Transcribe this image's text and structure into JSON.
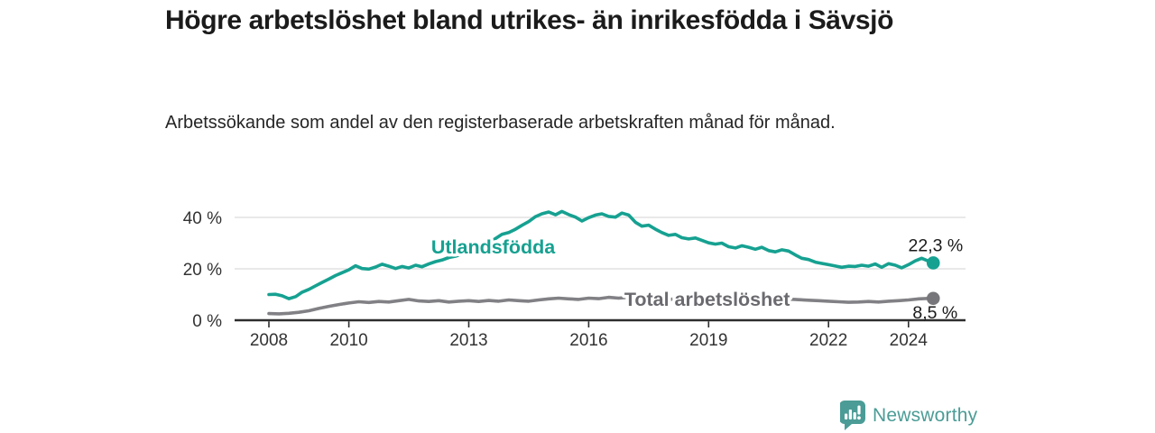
{
  "header": {
    "title": "Högre arbetslöshet bland utrikes- än inrikesfödda i Sävsjö",
    "subtitle": "Arbetssökande som andel av den registerbaserade arbetskraften månad för månad."
  },
  "footer": {
    "brand": "Newsworthy",
    "logo_icon": "bar-chart-speech-bubble-icon",
    "brand_color": "#4b9c96"
  },
  "colors": {
    "title_text": "#1b1b1b",
    "subtitle_text": "#252525",
    "axis_line": "#2d2d2d",
    "axis_text": "#333333",
    "gridline": "#dcdcdc",
    "teal": "#16a191",
    "gray_line": "#818185",
    "gray_label": "#6a6a6f",
    "gray_dot": "#77777b",
    "value_text": "#1a1a1a"
  },
  "chart_data": {
    "type": "line",
    "title": "",
    "xlabel": "",
    "ylabel": "",
    "grid": "horizontal",
    "legend_position": "inline-labels",
    "xlim": [
      2007.1,
      2025.4
    ],
    "ylim": [
      0,
      45
    ],
    "x_ticks": [
      2008,
      2010,
      2013,
      2016,
      2019,
      2022,
      2024
    ],
    "y_ticks": [
      {
        "value": 0,
        "label": "0 %"
      },
      {
        "value": 20,
        "label": "20 %"
      },
      {
        "value": 40,
        "label": "40 %"
      }
    ],
    "series": [
      {
        "name": "Utlandsfödda",
        "color": "#16a191",
        "label_color": "#16a191",
        "dot_color": "#16a191",
        "end_label": "22,3 %",
        "end_value": 22.3,
        "label_anchor": {
          "year": 2012.06,
          "pct": 26.0
        },
        "points": [
          [
            2008.0,
            10.0
          ],
          [
            2008.17,
            10.1
          ],
          [
            2008.33,
            9.5
          ],
          [
            2008.5,
            8.4
          ],
          [
            2008.67,
            9.2
          ],
          [
            2008.83,
            10.9
          ],
          [
            2009.0,
            12.0
          ],
          [
            2009.17,
            13.4
          ],
          [
            2009.33,
            14.7
          ],
          [
            2009.5,
            16.0
          ],
          [
            2009.67,
            17.4
          ],
          [
            2009.83,
            18.5
          ],
          [
            2010.0,
            19.6
          ],
          [
            2010.17,
            21.2
          ],
          [
            2010.33,
            20.1
          ],
          [
            2010.5,
            19.9
          ],
          [
            2010.67,
            20.7
          ],
          [
            2010.83,
            21.8
          ],
          [
            2011.0,
            21.0
          ],
          [
            2011.17,
            20.1
          ],
          [
            2011.33,
            20.9
          ],
          [
            2011.5,
            20.3
          ],
          [
            2011.67,
            21.4
          ],
          [
            2011.83,
            20.8
          ],
          [
            2012.0,
            21.9
          ],
          [
            2012.17,
            22.8
          ],
          [
            2012.33,
            23.4
          ],
          [
            2012.5,
            24.4
          ],
          [
            2012.67,
            24.9
          ],
          [
            2012.83,
            25.8
          ],
          [
            2013.0,
            26.4
          ],
          [
            2013.17,
            27.3
          ],
          [
            2013.33,
            28.4
          ],
          [
            2013.5,
            29.9
          ],
          [
            2013.67,
            31.8
          ],
          [
            2013.83,
            33.4
          ],
          [
            2014.0,
            34.1
          ],
          [
            2014.17,
            35.4
          ],
          [
            2014.33,
            36.9
          ],
          [
            2014.5,
            38.4
          ],
          [
            2014.67,
            40.3
          ],
          [
            2014.83,
            41.4
          ],
          [
            2015.0,
            42.1
          ],
          [
            2015.17,
            41.0
          ],
          [
            2015.33,
            42.3
          ],
          [
            2015.5,
            41.1
          ],
          [
            2015.67,
            40.1
          ],
          [
            2015.83,
            38.6
          ],
          [
            2016.0,
            39.9
          ],
          [
            2016.17,
            40.9
          ],
          [
            2016.33,
            41.4
          ],
          [
            2016.5,
            40.4
          ],
          [
            2016.67,
            40.1
          ],
          [
            2016.83,
            41.7
          ],
          [
            2017.0,
            40.9
          ],
          [
            2017.17,
            38.1
          ],
          [
            2017.33,
            36.6
          ],
          [
            2017.5,
            37.0
          ],
          [
            2017.67,
            35.4
          ],
          [
            2017.83,
            34.1
          ],
          [
            2018.0,
            33.0
          ],
          [
            2018.17,
            33.4
          ],
          [
            2018.33,
            32.1
          ],
          [
            2018.5,
            31.6
          ],
          [
            2018.67,
            32.0
          ],
          [
            2018.83,
            31.1
          ],
          [
            2019.0,
            30.1
          ],
          [
            2019.17,
            29.6
          ],
          [
            2019.33,
            30.0
          ],
          [
            2019.5,
            28.6
          ],
          [
            2019.67,
            28.1
          ],
          [
            2019.83,
            29.0
          ],
          [
            2020.0,
            28.4
          ],
          [
            2020.17,
            27.6
          ],
          [
            2020.33,
            28.4
          ],
          [
            2020.5,
            27.1
          ],
          [
            2020.67,
            26.6
          ],
          [
            2020.83,
            27.4
          ],
          [
            2021.0,
            26.9
          ],
          [
            2021.17,
            25.4
          ],
          [
            2021.33,
            24.1
          ],
          [
            2021.5,
            23.6
          ],
          [
            2021.67,
            22.6
          ],
          [
            2021.83,
            22.1
          ],
          [
            2022.0,
            21.6
          ],
          [
            2022.17,
            21.1
          ],
          [
            2022.33,
            20.6
          ],
          [
            2022.5,
            21.0
          ],
          [
            2022.67,
            20.9
          ],
          [
            2022.83,
            21.4
          ],
          [
            2023.0,
            21.0
          ],
          [
            2023.17,
            21.9
          ],
          [
            2023.33,
            20.6
          ],
          [
            2023.5,
            22.0
          ],
          [
            2023.67,
            21.4
          ],
          [
            2023.83,
            20.4
          ],
          [
            2024.0,
            21.6
          ],
          [
            2024.17,
            23.1
          ],
          [
            2024.33,
            24.1
          ],
          [
            2024.5,
            23.0
          ],
          [
            2024.62,
            22.3
          ]
        ]
      },
      {
        "name": "Total arbetslöshet",
        "color": "#818185",
        "label_color": "#6a6a6f",
        "dot_color": "#77777b",
        "end_label": "8,5 %",
        "end_value": 8.5,
        "label_anchor": {
          "year": 2016.89,
          "pct": 5.6
        },
        "points": [
          [
            2008.0,
            2.6
          ],
          [
            2008.25,
            2.5
          ],
          [
            2008.5,
            2.7
          ],
          [
            2008.75,
            3.1
          ],
          [
            2009.0,
            3.7
          ],
          [
            2009.25,
            4.6
          ],
          [
            2009.5,
            5.4
          ],
          [
            2009.75,
            6.1
          ],
          [
            2010.0,
            6.7
          ],
          [
            2010.25,
            7.2
          ],
          [
            2010.5,
            6.9
          ],
          [
            2010.75,
            7.3
          ],
          [
            2011.0,
            7.1
          ],
          [
            2011.25,
            7.6
          ],
          [
            2011.5,
            8.1
          ],
          [
            2011.75,
            7.5
          ],
          [
            2012.0,
            7.3
          ],
          [
            2012.25,
            7.6
          ],
          [
            2012.5,
            7.1
          ],
          [
            2012.75,
            7.4
          ],
          [
            2013.0,
            7.6
          ],
          [
            2013.25,
            7.3
          ],
          [
            2013.5,
            7.7
          ],
          [
            2013.75,
            7.4
          ],
          [
            2014.0,
            7.9
          ],
          [
            2014.25,
            7.6
          ],
          [
            2014.5,
            7.4
          ],
          [
            2014.75,
            7.9
          ],
          [
            2015.0,
            8.3
          ],
          [
            2015.25,
            8.6
          ],
          [
            2015.5,
            8.3
          ],
          [
            2015.75,
            8.1
          ],
          [
            2016.0,
            8.6
          ],
          [
            2016.25,
            8.4
          ],
          [
            2016.5,
            8.9
          ],
          [
            2016.75,
            8.6
          ],
          [
            2017.0,
            8.9
          ],
          [
            2017.25,
            8.5
          ],
          [
            2017.5,
            8.7
          ],
          [
            2017.75,
            8.3
          ],
          [
            2018.0,
            8.1
          ],
          [
            2018.25,
            8.4
          ],
          [
            2018.5,
            8.0
          ],
          [
            2018.75,
            8.2
          ],
          [
            2019.0,
            8.1
          ],
          [
            2019.25,
            8.3
          ],
          [
            2019.5,
            7.9
          ],
          [
            2019.75,
            8.1
          ],
          [
            2020.0,
            8.3
          ],
          [
            2020.25,
            8.7
          ],
          [
            2020.5,
            8.5
          ],
          [
            2020.75,
            8.1
          ],
          [
            2021.0,
            8.2
          ],
          [
            2021.25,
            8.0
          ],
          [
            2021.5,
            7.8
          ],
          [
            2021.75,
            7.6
          ],
          [
            2022.0,
            7.4
          ],
          [
            2022.25,
            7.2
          ],
          [
            2022.5,
            7.0
          ],
          [
            2022.75,
            7.1
          ],
          [
            2023.0,
            7.3
          ],
          [
            2023.25,
            7.1
          ],
          [
            2023.5,
            7.4
          ],
          [
            2023.75,
            7.6
          ],
          [
            2024.0,
            7.9
          ],
          [
            2024.25,
            8.3
          ],
          [
            2024.5,
            8.5
          ],
          [
            2024.62,
            8.5
          ]
        ]
      }
    ]
  }
}
